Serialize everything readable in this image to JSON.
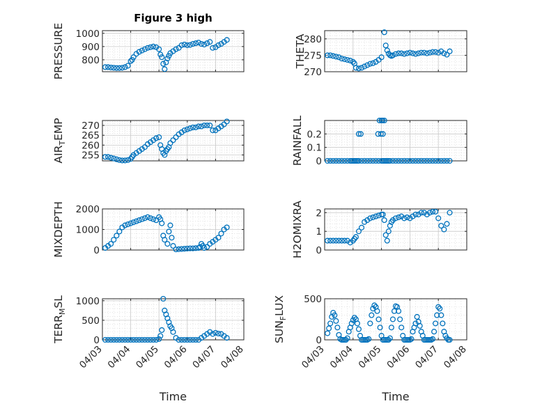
{
  "figure": {
    "title": "Figure 3 high"
  },
  "chart_data": [
    {
      "id": "pressure",
      "type": "scatter",
      "title": "Figure 3 high",
      "ylabel": "PRESSURE",
      "ylim": [
        710,
        1020
      ],
      "yticks": [
        800,
        900,
        1000
      ],
      "yticklabels": [
        "800",
        "900",
        "1000"
      ],
      "xlim": [
        0,
        5
      ],
      "xticks": [
        "04/03",
        "04/04",
        "04/05",
        "04/06",
        "04/07",
        "04/08"
      ],
      "xlabel": "",
      "grid": true,
      "series": [
        {
          "x": [
            0.1,
            0.2,
            0.3,
            0.4,
            0.5,
            0.6,
            0.7,
            0.8,
            0.9,
            1.0,
            1.05,
            1.1,
            1.2,
            1.3,
            1.4,
            1.5,
            1.6,
            1.7,
            1.8,
            1.9,
            2.0,
            2.05,
            2.1,
            2.15,
            2.2,
            2.25,
            2.3,
            2.35,
            2.4,
            2.5,
            2.6,
            2.7,
            2.8,
            2.9,
            3.0,
            3.1,
            3.2,
            3.3,
            3.4,
            3.5,
            3.6,
            3.7,
            3.8,
            3.9,
            4.0,
            4.1,
            4.2,
            4.3,
            4.4
          ],
          "y": [
            745,
            745,
            742,
            740,
            738,
            738,
            740,
            745,
            755,
            790,
            800,
            820,
            845,
            860,
            870,
            880,
            890,
            895,
            900,
            895,
            880,
            840,
            820,
            770,
            730,
            780,
            810,
            830,
            850,
            865,
            880,
            890,
            910,
            915,
            910,
            912,
            920,
            925,
            930,
            920,
            915,
            925,
            935,
            890,
            895,
            910,
            920,
            935,
            950
          ]
        }
      ]
    },
    {
      "id": "theta",
      "type": "scatter",
      "ylabel": "THETA",
      "ylim": [
        270,
        282.5
      ],
      "yticks": [
        270,
        275,
        280
      ],
      "yticklabels": [
        "270",
        "275",
        "280"
      ],
      "xlim": [
        0,
        5
      ],
      "xticks": [
        "04/03",
        "04/04",
        "04/05",
        "04/06",
        "04/07",
        "04/08"
      ],
      "xlabel": "",
      "grid": true,
      "series": [
        {
          "x": [
            0.1,
            0.2,
            0.3,
            0.4,
            0.5,
            0.6,
            0.7,
            0.8,
            0.9,
            1.0,
            1.05,
            1.1,
            1.2,
            1.3,
            1.4,
            1.5,
            1.6,
            1.7,
            1.8,
            1.9,
            2.0,
            2.1,
            2.15,
            2.2,
            2.25,
            2.3,
            2.35,
            2.4,
            2.5,
            2.6,
            2.7,
            2.8,
            2.9,
            3.0,
            3.1,
            3.2,
            3.3,
            3.4,
            3.5,
            3.6,
            3.7,
            3.8,
            3.9,
            4.0,
            4.1,
            4.2,
            4.3,
            4.4
          ],
          "y": [
            275,
            275,
            274.8,
            274.6,
            274.4,
            274,
            273.8,
            273.6,
            273.4,
            273,
            272.5,
            271.2,
            271,
            271.2,
            271.6,
            272,
            272.4,
            272.6,
            273,
            273.6,
            274.4,
            282,
            278,
            276.5,
            275.5,
            275,
            274.8,
            275,
            275.4,
            275.6,
            275.6,
            275.4,
            275.6,
            275.8,
            275.6,
            275.4,
            275.6,
            275.8,
            275.8,
            275.6,
            275.8,
            276,
            276,
            275.8,
            276.2,
            275.6,
            275.2,
            276.2
          ]
        }
      ]
    },
    {
      "id": "air_temp",
      "type": "scatter",
      "ylabel": "AIR_TEMP",
      "ylim": [
        252,
        272.5
      ],
      "yticks": [
        255,
        260,
        265,
        270
      ],
      "yticklabels": [
        "255",
        "260",
        "265",
        "270"
      ],
      "xlim": [
        0,
        5
      ],
      "xticks": [
        "04/03",
        "04/04",
        "04/05",
        "04/06",
        "04/07",
        "04/08"
      ],
      "xlabel": "",
      "grid": true,
      "series": [
        {
          "x": [
            0.1,
            0.2,
            0.3,
            0.4,
            0.5,
            0.6,
            0.7,
            0.8,
            0.9,
            1.0,
            1.05,
            1.1,
            1.2,
            1.3,
            1.4,
            1.5,
            1.6,
            1.7,
            1.8,
            1.9,
            2.0,
            2.05,
            2.1,
            2.15,
            2.2,
            2.25,
            2.3,
            2.35,
            2.4,
            2.5,
            2.6,
            2.7,
            2.8,
            2.9,
            3.0,
            3.1,
            3.2,
            3.3,
            3.4,
            3.5,
            3.6,
            3.7,
            3.8,
            3.9,
            4.0,
            4.1,
            4.2,
            4.3,
            4.4
          ],
          "y": [
            254,
            254,
            253.6,
            253.2,
            252.8,
            252.4,
            252.2,
            252.2,
            252.4,
            253,
            254,
            255,
            256,
            257,
            258,
            259,
            260.5,
            261.5,
            262.5,
            263.5,
            264,
            260,
            258,
            256,
            255,
            257,
            258,
            259,
            261,
            262.5,
            264,
            265.5,
            266.5,
            267.5,
            268,
            268.5,
            269,
            269,
            269.5,
            269.5,
            270,
            270,
            270,
            267.5,
            267.5,
            268.5,
            269.5,
            270.5,
            272
          ]
        }
      ]
    },
    {
      "id": "rainfall",
      "type": "scatter",
      "ylabel": "RAINFALL",
      "ylim": [
        0,
        0.3
      ],
      "yticks": [
        0,
        0.1,
        0.2
      ],
      "yticklabels": [
        "0",
        "0.1",
        "0.2"
      ],
      "xlim": [
        0,
        5
      ],
      "xticks": [
        "04/03",
        "04/04",
        "04/05",
        "04/06",
        "04/07",
        "04/08"
      ],
      "xlabel": "",
      "grid": true,
      "series": [
        {
          "x": [
            0.1,
            0.2,
            0.3,
            0.4,
            0.5,
            0.6,
            0.7,
            0.8,
            0.9,
            0.95,
            1.0,
            1.05,
            1.1,
            1.15,
            1.2,
            1.3,
            1.4,
            1.5,
            1.6,
            1.7,
            1.8,
            1.9,
            2.0,
            2.05,
            2.1,
            2.15,
            2.2,
            2.25,
            2.3,
            2.4,
            2.5,
            2.6,
            2.7,
            2.8,
            2.9,
            3.0,
            3.1,
            3.2,
            3.3,
            3.4,
            3.5,
            3.6,
            3.7,
            3.8,
            3.9,
            4.0,
            4.1,
            4.2,
            4.3,
            4.4,
            1.2,
            1.27,
            1.88,
            1.93,
            2.0,
            2.04,
            2.1,
            1.98,
            2.05
          ],
          "y": [
            0,
            0,
            0,
            0,
            0,
            0,
            0,
            0,
            0,
            0,
            0,
            0,
            0,
            0,
            0,
            0,
            0,
            0,
            0,
            0,
            0,
            0,
            0,
            0,
            0,
            0,
            0,
            0,
            0,
            0,
            0,
            0,
            0,
            0,
            0,
            0,
            0,
            0,
            0,
            0,
            0,
            0,
            0,
            0,
            0,
            0,
            0,
            0,
            0,
            0,
            0.2,
            0.2,
            0.2,
            0.3,
            0.3,
            0.3,
            0.3,
            0.2,
            0.2
          ]
        }
      ]
    },
    {
      "id": "mixdepth",
      "type": "scatter",
      "ylabel": "MIXDEPTH",
      "ylim": [
        0,
        2000
      ],
      "yticks": [
        0,
        1000,
        2000
      ],
      "yticklabels": [
        "0",
        "1000",
        "2000"
      ],
      "xlim": [
        0,
        5
      ],
      "xticks": [
        "04/03",
        "04/04",
        "04/05",
        "04/06",
        "04/07",
        "04/08"
      ],
      "xlabel": "",
      "grid": true,
      "series": [
        {
          "x": [
            0.1,
            0.2,
            0.3,
            0.4,
            0.5,
            0.6,
            0.7,
            0.8,
            0.9,
            1.0,
            1.1,
            1.2,
            1.3,
            1.4,
            1.5,
            1.6,
            1.7,
            1.8,
            1.9,
            2.0,
            2.05,
            2.1,
            2.15,
            2.2,
            2.3,
            2.35,
            2.4,
            2.45,
            2.5,
            2.6,
            2.7,
            2.8,
            2.9,
            3.0,
            3.1,
            3.2,
            3.3,
            3.4,
            3.45,
            3.5,
            3.55,
            3.6,
            3.7,
            3.8,
            3.9,
            4.0,
            4.1,
            4.2,
            4.3,
            4.4
          ],
          "y": [
            100,
            200,
            300,
            500,
            700,
            900,
            1100,
            1200,
            1250,
            1300,
            1350,
            1400,
            1450,
            1500,
            1550,
            1600,
            1550,
            1500,
            1450,
            1600,
            1500,
            1300,
            700,
            500,
            300,
            900,
            1200,
            600,
            200,
            30,
            40,
            50,
            60,
            70,
            80,
            80,
            90,
            100,
            150,
            300,
            200,
            100,
            150,
            300,
            400,
            500,
            600,
            800,
            1000,
            1100
          ]
        }
      ]
    },
    {
      "id": "h2omixra",
      "type": "scatter",
      "ylabel": "H2OMIXRA",
      "ylim": [
        0,
        2.2
      ],
      "yticks": [
        0,
        1,
        2
      ],
      "yticklabels": [
        "0",
        "1",
        "2"
      ],
      "xlim": [
        0,
        5
      ],
      "xticks": [
        "04/03",
        "04/04",
        "04/05",
        "04/06",
        "04/07",
        "04/08"
      ],
      "xlabel": "",
      "grid": true,
      "series": [
        {
          "x": [
            0.1,
            0.2,
            0.3,
            0.4,
            0.5,
            0.6,
            0.7,
            0.8,
            0.9,
            1.0,
            1.05,
            1.1,
            1.2,
            1.3,
            1.4,
            1.5,
            1.6,
            1.7,
            1.8,
            1.9,
            2.0,
            2.05,
            2.1,
            2.15,
            2.2,
            2.25,
            2.3,
            2.35,
            2.4,
            2.5,
            2.6,
            2.7,
            2.8,
            2.9,
            3.0,
            3.1,
            3.2,
            3.3,
            3.4,
            3.5,
            3.6,
            3.7,
            3.8,
            3.9,
            4.0,
            4.1,
            4.2,
            4.3,
            4.4
          ],
          "y": [
            0.5,
            0.5,
            0.5,
            0.5,
            0.5,
            0.5,
            0.5,
            0.5,
            0.4,
            0.5,
            0.6,
            0.7,
            1.0,
            1.2,
            1.5,
            1.6,
            1.7,
            1.75,
            1.8,
            1.85,
            1.9,
            1.9,
            1.6,
            0.8,
            0.5,
            1.0,
            1.3,
            1.5,
            1.6,
            1.7,
            1.75,
            1.8,
            1.7,
            1.75,
            1.7,
            1.8,
            1.9,
            1.9,
            2.0,
            2.0,
            1.9,
            2.0,
            2.05,
            2.05,
            1.7,
            1.3,
            1.1,
            1.4,
            2.0
          ]
        }
      ]
    },
    {
      "id": "terr_msl",
      "type": "scatter",
      "ylabel": "TERR_MSL",
      "ylim": [
        0,
        1050
      ],
      "yticks": [
        0,
        500,
        1000
      ],
      "yticklabels": [
        "0",
        "500",
        "1000"
      ],
      "xlim": [
        0,
        5
      ],
      "xticks": [
        "04/03",
        "04/04",
        "04/05",
        "04/06",
        "04/07",
        "04/08"
      ],
      "xlabel": "Time",
      "grid": true,
      "series": [
        {
          "x": [
            0.1,
            0.2,
            0.3,
            0.4,
            0.5,
            0.6,
            0.7,
            0.8,
            0.9,
            1.0,
            1.1,
            1.2,
            1.3,
            1.4,
            1.5,
            1.6,
            1.7,
            1.8,
            1.9,
            2.0,
            2.05,
            2.1,
            2.15,
            2.2,
            2.25,
            2.3,
            2.35,
            2.4,
            2.45,
            2.5,
            2.6,
            2.7,
            2.8,
            2.9,
            3.0,
            3.1,
            3.2,
            3.3,
            3.4,
            3.5,
            3.6,
            3.7,
            3.8,
            3.9,
            4.0,
            4.1,
            4.2,
            4.3,
            4.4
          ],
          "y": [
            0,
            0,
            0,
            0,
            0,
            0,
            0,
            0,
            0,
            0,
            0,
            0,
            0,
            0,
            0,
            0,
            0,
            0,
            0,
            20,
            100,
            250,
            1050,
            750,
            650,
            550,
            450,
            350,
            300,
            200,
            50,
            0,
            0,
            0,
            0,
            0,
            0,
            0,
            0,
            50,
            100,
            150,
            200,
            150,
            180,
            160,
            150,
            100,
            50
          ]
        }
      ]
    },
    {
      "id": "sun_flux",
      "type": "scatter",
      "ylabel": "SUN_FLUX",
      "ylim": [
        0,
        500
      ],
      "yticks": [
        0,
        500
      ],
      "yticklabels": [
        "0",
        "500"
      ],
      "xlim": [
        0,
        5
      ],
      "xticks": [
        "04/03",
        "04/04",
        "04/05",
        "04/06",
        "04/07",
        "04/08"
      ],
      "xlabel": "Time",
      "grid": true,
      "series": [
        {
          "x": [
            0.1,
            0.15,
            0.2,
            0.25,
            0.3,
            0.35,
            0.4,
            0.45,
            0.5,
            0.55,
            0.6,
            0.65,
            0.7,
            0.75,
            0.8,
            0.85,
            0.9,
            0.95,
            1.0,
            1.05,
            1.1,
            1.15,
            1.2,
            1.25,
            1.3,
            1.35,
            1.4,
            1.45,
            1.5,
            1.55,
            1.6,
            1.65,
            1.7,
            1.75,
            1.8,
            1.85,
            1.9,
            1.95,
            2.0,
            2.05,
            2.1,
            2.15,
            2.2,
            2.25,
            2.3,
            2.35,
            2.4,
            2.45,
            2.5,
            2.55,
            2.6,
            2.65,
            2.7,
            2.75,
            2.8,
            2.85,
            2.9,
            2.95,
            3.0,
            3.05,
            3.1,
            3.15,
            3.2,
            3.25,
            3.3,
            3.35,
            3.4,
            3.45,
            3.5,
            3.55,
            3.6,
            3.65,
            3.7,
            3.75,
            3.8,
            3.85,
            3.9,
            3.95,
            4.0,
            4.05,
            4.1,
            4.15,
            4.2,
            4.25,
            4.3,
            4.35,
            4.4
          ],
          "y": [
            80,
            140,
            200,
            280,
            330,
            300,
            230,
            150,
            60,
            10,
            0,
            0,
            0,
            0,
            20,
            100,
            150,
            200,
            240,
            270,
            250,
            200,
            130,
            50,
            0,
            0,
            0,
            0,
            0,
            10,
            200,
            300,
            380,
            420,
            400,
            350,
            250,
            150,
            50,
            0,
            0,
            0,
            0,
            0,
            20,
            150,
            250,
            350,
            410,
            400,
            350,
            250,
            150,
            50,
            0,
            0,
            0,
            0,
            0,
            10,
            100,
            150,
            200,
            280,
            220,
            170,
            100,
            50,
            0,
            0,
            0,
            0,
            0,
            0,
            10,
            100,
            200,
            300,
            400,
            380,
            300,
            200,
            100,
            50,
            20,
            0,
            0
          ]
        }
      ]
    }
  ]
}
